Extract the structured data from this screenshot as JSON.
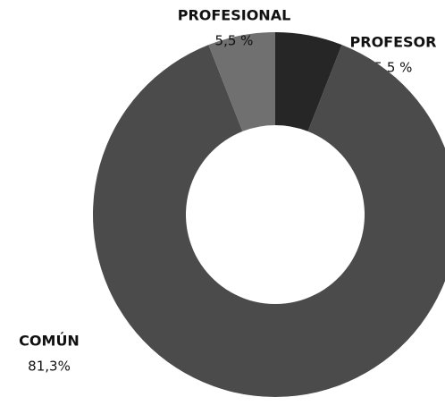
{
  "chart_data": {
    "type": "donut",
    "categories": [
      "PROFESOR",
      "COMÚN",
      "PROFESIONAL"
    ],
    "values": [
      5.5,
      81.3,
      5.5
    ],
    "value_labels": [
      "5,5 %",
      "81,3%",
      "5,5 %"
    ],
    "colors": [
      "#262626",
      "#4b4b4b",
      "#707070"
    ]
  }
}
